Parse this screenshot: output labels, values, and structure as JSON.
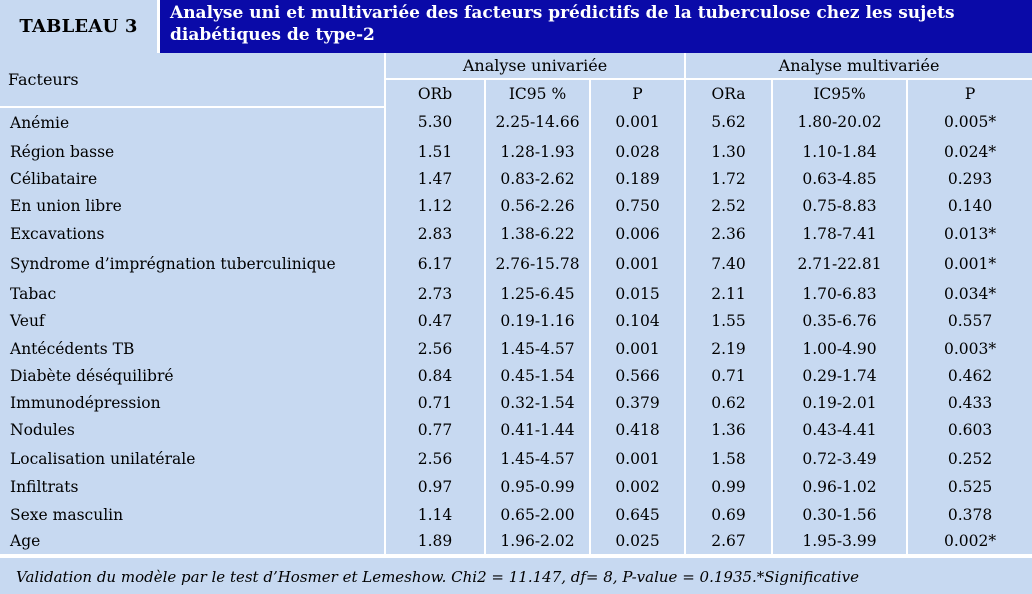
{
  "header": {
    "label": "TABLEAU 3",
    "title": "Analyse uni et multivariée des facteurs prédictifs de la tuberculose chez les sujets diabétiques de type-2"
  },
  "table": {
    "factor_header": "Facteurs",
    "groups": [
      "Analyse univariée",
      "Analyse multivariée"
    ],
    "subheaders": [
      "ORb",
      "IC95 %",
      "P",
      "ORa",
      "IC95%",
      "P"
    ],
    "rows": [
      [
        "Anémie",
        "5.30",
        "2.25-14.66",
        "0.001",
        "5.62",
        "1.80-20.02",
        "0.005*"
      ],
      [
        "Région basse",
        "1.51",
        "1.28-1.93",
        "0.028",
        "1.30",
        "1.10-1.84",
        "0.024*"
      ],
      [
        "Célibataire",
        "1.47",
        "0.83-2.62",
        "0.189",
        "1.72",
        "0.63-4.85",
        "0.293"
      ],
      [
        "En union libre",
        "1.12",
        "0.56-2.26",
        "0.750",
        "2.52",
        "0.75-8.83",
        "0.140"
      ],
      [
        "Excavations",
        "2.83",
        "1.38-6.22",
        "0.006",
        "2.36",
        "1.78-7.41",
        "0.013*"
      ],
      [
        "Syndrome d’imprégnation tuberculinique",
        "6.17",
        "2.76-15.78",
        "0.001",
        "7.40",
        "2.71-22.81",
        "0.001*"
      ],
      [
        "Tabac",
        "2.73",
        "1.25-6.45",
        "0.015",
        "2.11",
        "1.70-6.83",
        "0.034*"
      ],
      [
        "Veuf",
        "0.47",
        "0.19-1.16",
        "0.104",
        "1.55",
        "0.35-6.76",
        "0.557"
      ],
      [
        "Antécédents TB",
        "2.56",
        "1.45-4.57",
        "0.001",
        "2.19",
        "1.00-4.90",
        "0.003*"
      ],
      [
        "Diabète déséquilibré",
        "0.84",
        "0.45-1.54",
        "0.566",
        "0.71",
        "0.29-1.74",
        "0.462"
      ],
      [
        "Immunodépression",
        "0.71",
        "0.32-1.54",
        "0.379",
        "0.62",
        "0.19-2.01",
        "0.433"
      ],
      [
        "Nodules",
        "0.77",
        "0.41-1.44",
        "0.418",
        "1.36",
        "0.43-4.41",
        "0.603"
      ],
      [
        "Localisation unilatérale",
        "2.56",
        "1.45-4.57",
        "0.001",
        "1.58",
        "0.72-3.49",
        "0.252"
      ],
      [
        "Infiltrats",
        "0.97",
        "0.95-0.99",
        "0.002",
        "0.99",
        "0.96-1.02",
        "0.525"
      ],
      [
        "Sexe masculin",
        "1.14",
        "0.65-2.00",
        "0.645",
        "0.69",
        "0.30-1.56",
        "0.378"
      ],
      [
        "Age",
        "1.89",
        "1.96-2.02",
        "0.025",
        "2.67",
        "1.95-3.99",
        "0.002*"
      ]
    ]
  },
  "footnote": "Validation du modèle par le test d’Hosmer et Lemeshow. Chi2 = 11.147, df= 8, P-value = 0.1935.*Significative",
  "colors": {
    "title_bg": "#0a0aa8",
    "table_bg": "#c7d9f1"
  }
}
